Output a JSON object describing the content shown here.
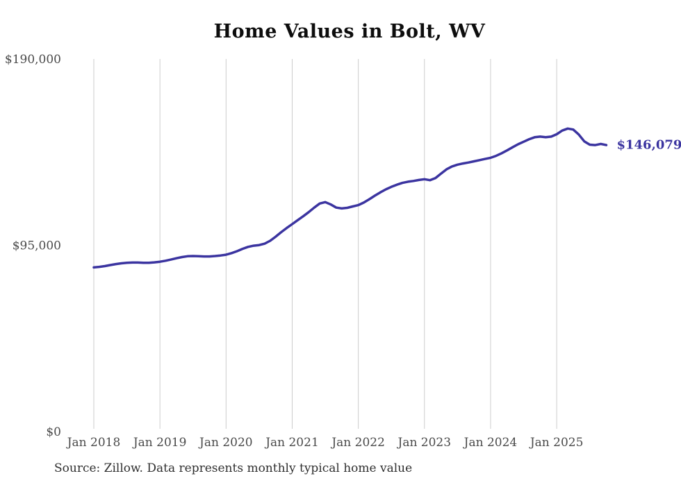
{
  "chart_data": {
    "type": "line",
    "title": "Home Values in Bolt, WV",
    "series_name": "Monthly typical home value",
    "xlabel": "",
    "ylabel": "",
    "ylim": [
      0,
      190000
    ],
    "grid": "vertical-only",
    "legend": "none",
    "line_color": "#3b34a0",
    "grid_color": "#cccccc",
    "tick_label_color": "#4a4a4a",
    "end_label": "$146,079",
    "end_value": 146079,
    "x_tick_labels": [
      "Jan 2018",
      "Jan 2019",
      "Jan 2020",
      "Jan 2021",
      "Jan 2022",
      "Jan 2023",
      "Jan 2024",
      "Jan 2025"
    ],
    "y_ticks": [
      {
        "value": 0,
        "label": "$0"
      },
      {
        "value": 95000,
        "label": "$95,000"
      },
      {
        "value": 190000,
        "label": "$190,000"
      }
    ],
    "x": [
      "2018-01",
      "2018-02",
      "2018-03",
      "2018-04",
      "2018-05",
      "2018-06",
      "2018-07",
      "2018-08",
      "2018-09",
      "2018-10",
      "2018-11",
      "2018-12",
      "2019-01",
      "2019-02",
      "2019-03",
      "2019-04",
      "2019-05",
      "2019-06",
      "2019-07",
      "2019-08",
      "2019-09",
      "2019-10",
      "2019-11",
      "2019-12",
      "2020-01",
      "2020-02",
      "2020-03",
      "2020-04",
      "2020-05",
      "2020-06",
      "2020-07",
      "2020-08",
      "2020-09",
      "2020-10",
      "2020-11",
      "2020-12",
      "2021-01",
      "2021-02",
      "2021-03",
      "2021-04",
      "2021-05",
      "2021-06",
      "2021-07",
      "2021-08",
      "2021-09",
      "2021-10",
      "2021-11",
      "2021-12",
      "2022-01",
      "2022-02",
      "2022-03",
      "2022-04",
      "2022-05",
      "2022-06",
      "2022-07",
      "2022-08",
      "2022-09",
      "2022-10",
      "2022-11",
      "2022-12",
      "2023-01",
      "2023-02",
      "2023-03",
      "2023-04",
      "2023-05",
      "2023-06",
      "2023-07",
      "2023-08",
      "2023-09",
      "2023-10",
      "2023-11",
      "2023-12",
      "2024-01",
      "2024-02",
      "2024-03",
      "2024-04",
      "2024-05",
      "2024-06",
      "2024-07",
      "2024-08",
      "2024-09",
      "2024-10",
      "2024-11",
      "2024-12",
      "2025-01",
      "2025-02",
      "2025-03",
      "2025-04",
      "2025-05",
      "2025-06",
      "2025-07",
      "2025-08",
      "2025-09",
      "2025-10"
    ],
    "values": [
      83700,
      84000,
      84400,
      84900,
      85400,
      85800,
      86100,
      86200,
      86200,
      86100,
      86100,
      86300,
      86600,
      87100,
      87700,
      88400,
      89000,
      89400,
      89500,
      89400,
      89300,
      89300,
      89500,
      89800,
      90200,
      91000,
      92000,
      93200,
      94200,
      94800,
      95100,
      95800,
      97300,
      99400,
      101700,
      103800,
      105800,
      107800,
      109800,
      111900,
      114200,
      116300,
      117000,
      115800,
      114200,
      113800,
      114100,
      114800,
      115500,
      116800,
      118500,
      120300,
      122000,
      123500,
      124800,
      125900,
      126800,
      127400,
      127800,
      128300,
      128700,
      128200,
      129300,
      131500,
      133700,
      135200,
      136100,
      136700,
      137200,
      137800,
      138400,
      139000,
      139600,
      140600,
      141900,
      143400,
      145000,
      146500,
      147800,
      149100,
      150100,
      150400,
      150100,
      150400,
      151600,
      153500,
      154500,
      154000,
      151500,
      148000,
      146300,
      146100,
      146700,
      146079
    ]
  },
  "source_note": "Source: Zillow. Data represents monthly typical home value"
}
